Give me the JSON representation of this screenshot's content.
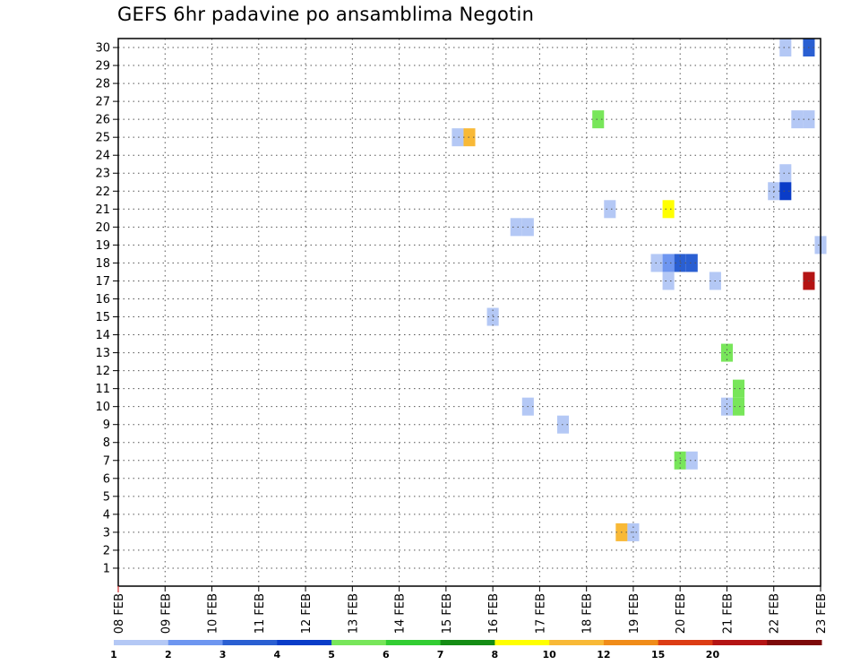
{
  "chart_data": {
    "type": "heatmap",
    "title": "GEFS 6hr padavine po ansamblima Negotin",
    "xlabel": "",
    "ylabel": "",
    "x_ticks": [
      "08 FEB",
      "09 FEB",
      "10 FEB",
      "11 FEB",
      "12 FEB",
      "13 FEB",
      "14 FEB",
      "15 FEB",
      "16 FEB",
      "17 FEB",
      "18 FEB",
      "19 FEB",
      "20 FEB",
      "21 FEB",
      "22 FEB",
      "23 FEB"
    ],
    "y_ticks": [
      1,
      2,
      3,
      4,
      5,
      6,
      7,
      8,
      9,
      10,
      11,
      12,
      13,
      14,
      15,
      16,
      17,
      18,
      19,
      20,
      21,
      22,
      23,
      24,
      25,
      26,
      27,
      28,
      29,
      30
    ],
    "xlim_days": [
      0,
      15
    ],
    "ylim": [
      0,
      30
    ],
    "grid": true,
    "colorbar": {
      "labels": [
        "1",
        "2",
        "3",
        "4",
        "5",
        "6",
        "7",
        "8",
        "10",
        "12",
        "15",
        "20"
      ],
      "colors": [
        "#b4c8f5",
        "#6e96f0",
        "#2a5fd2",
        "#0a3cc8",
        "#78e65a",
        "#32cd32",
        "#148c14",
        "#ffff00",
        "#f8b937",
        "#f08c19",
        "#dc3c14",
        "#b41414",
        "#7d0a0a"
      ]
    },
    "cells": [
      {
        "member": 30,
        "time": "22 FEB 06",
        "value": 1
      },
      {
        "member": 30,
        "time": "22 FEB 18",
        "value": 3
      },
      {
        "member": 26,
        "time": "18 FEB 06",
        "value": 5
      },
      {
        "member": 26,
        "time": "22 FEB 12",
        "value": 1
      },
      {
        "member": 26,
        "time": "22 FEB 18",
        "value": 1
      },
      {
        "member": 25,
        "time": "15 FEB 06",
        "value": 1
      },
      {
        "member": 25,
        "time": "15 FEB 12",
        "value": 10
      },
      {
        "member": 23,
        "time": "22 FEB 06",
        "value": 1
      },
      {
        "member": 22,
        "time": "22 FEB 00",
        "value": 1
      },
      {
        "member": 22,
        "time": "22 FEB 06",
        "value": 4
      },
      {
        "member": 21,
        "time": "18 FEB 12",
        "value": 1
      },
      {
        "member": 21,
        "time": "19 FEB 18",
        "value": 8
      },
      {
        "member": 20,
        "time": "16 FEB 12",
        "value": 1
      },
      {
        "member": 20,
        "time": "16 FEB 18",
        "value": 1
      },
      {
        "member": 19,
        "time": "23 FEB 00",
        "value": 1
      },
      {
        "member": 18,
        "time": "19 FEB 12",
        "value": 1
      },
      {
        "member": 18,
        "time": "19 FEB 18",
        "value": 2
      },
      {
        "member": 18,
        "time": "20 FEB 00",
        "value": 3
      },
      {
        "member": 18,
        "time": "20 FEB 06",
        "value": 3
      },
      {
        "member": 17,
        "time": "19 FEB 18",
        "value": 1
      },
      {
        "member": 17,
        "time": "20 FEB 18",
        "value": 1
      },
      {
        "member": 17,
        "time": "22 FEB 18",
        "value": 20
      },
      {
        "member": 15,
        "time": "16 FEB 00",
        "value": 1
      },
      {
        "member": 13,
        "time": "21 FEB 00",
        "value": 5
      },
      {
        "member": 11,
        "time": "21 FEB 06",
        "value": 5
      },
      {
        "member": 10,
        "time": "16 FEB 18",
        "value": 1
      },
      {
        "member": 10,
        "time": "21 FEB 00",
        "value": 1
      },
      {
        "member": 10,
        "time": "21 FEB 06",
        "value": 5
      },
      {
        "member": 9,
        "time": "17 FEB 12",
        "value": 1
      },
      {
        "member": 7,
        "time": "20 FEB 00",
        "value": 5
      },
      {
        "member": 7,
        "time": "20 FEB 06",
        "value": 1
      },
      {
        "member": 3,
        "time": "18 FEB 18",
        "value": 10
      },
      {
        "member": 3,
        "time": "19 FEB 00",
        "value": 1
      }
    ]
  }
}
